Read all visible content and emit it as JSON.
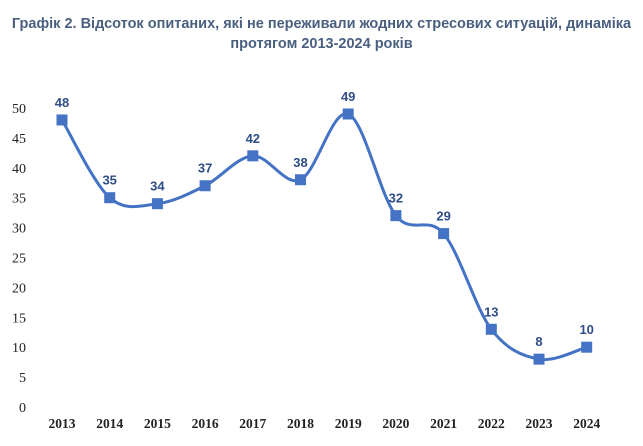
{
  "title_line1": "Графік 2. Відсоток опитаних, які не переживали жодних стресових ситуацій, динаміка",
  "title_line2": "протягом 2013-2024 років",
  "chart_data": {
    "type": "line",
    "title": "Графік 2. Відсоток опитаних, які не переживали жодних стресових ситуацій, динаміка протягом 2013-2024 років",
    "categories": [
      "2013",
      "2014",
      "2015",
      "2016",
      "2017",
      "2018",
      "2019",
      "2020",
      "2021",
      "2022",
      "2023",
      "2024"
    ],
    "values": [
      48,
      35,
      34,
      37,
      42,
      38,
      49,
      32,
      29,
      13,
      8,
      10
    ],
    "yticks": [
      "0",
      "5",
      "10",
      "15",
      "20",
      "25",
      "30",
      "35",
      "40",
      "45",
      "50"
    ],
    "ylim": [
      0,
      50
    ],
    "grid": false,
    "legend": "none",
    "smooth": true,
    "marker": "square",
    "line_color": "#4472c4",
    "label_color": "#2f4d86"
  }
}
